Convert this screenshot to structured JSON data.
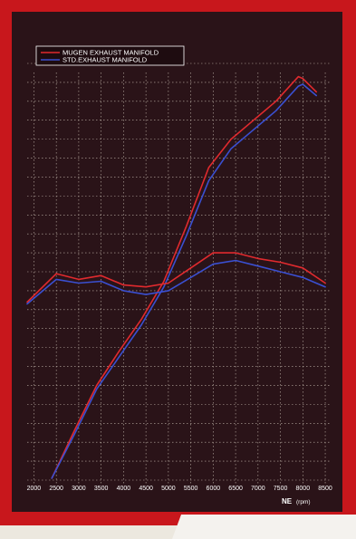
{
  "colors": {
    "frame": "#c8171c",
    "panel": "#2a1318",
    "grid": "#bfb3a8",
    "series_red": "#e02a2e",
    "series_blue": "#3a4fd0",
    "legend_box": "#ffffff"
  },
  "chart_data": {
    "type": "line",
    "title": "",
    "xlabel": "NE",
    "xlabel_unit": "(rpm)",
    "ylabel": "",
    "xlim": [
      1850,
      8600
    ],
    "ylim": [
      0,
      22
    ],
    "x_ticks": [
      "2000",
      "2500",
      "3000",
      "3500",
      "4000",
      "4500",
      "5000",
      "5500",
      "6000",
      "6500",
      "7000",
      "7500",
      "8000",
      "8500"
    ],
    "grid": true,
    "legend_position": "top-left",
    "series": [
      {
        "name": "MUGEN EXHAUST MANIFOLD",
        "role": "power",
        "color": "#e02a2e",
        "x": [
          2400,
          2900,
          3400,
          3900,
          4400,
          4900,
          5400,
          5900,
          6400,
          6900,
          7400,
          7900,
          8000,
          8300
        ],
        "y": [
          0.1,
          2.6,
          5.0,
          6.8,
          8.5,
          10.5,
          13.4,
          16.5,
          18.0,
          19.0,
          20.0,
          21.3,
          21.2,
          20.5
        ]
      },
      {
        "name": "STD.EXHAUST MANIFOLD",
        "role": "power",
        "color": "#3a4fd0",
        "x": [
          2400,
          2900,
          3400,
          3900,
          4400,
          4900,
          5400,
          5900,
          6400,
          6900,
          7400,
          7900,
          8000,
          8300
        ],
        "y": [
          0.1,
          2.4,
          4.8,
          6.5,
          8.2,
          10.2,
          12.9,
          15.8,
          17.5,
          18.5,
          19.5,
          20.8,
          20.9,
          20.3
        ]
      },
      {
        "name": "MUGEN EXHAUST MANIFOLD",
        "role": "torque",
        "color": "#e02a2e",
        "x": [
          1850,
          2500,
          3000,
          3500,
          4000,
          4500,
          5000,
          5500,
          6000,
          6500,
          7000,
          7500,
          8000,
          8500
        ],
        "y": [
          9.4,
          10.9,
          10.6,
          10.8,
          10.3,
          10.2,
          10.4,
          11.2,
          12.0,
          12.0,
          11.7,
          11.5,
          11.2,
          10.4
        ]
      },
      {
        "name": "STD.EXHAUST MANIFOLD",
        "role": "torque",
        "color": "#3a4fd0",
        "x": [
          1850,
          2500,
          3000,
          3500,
          4000,
          4500,
          5000,
          5500,
          6000,
          6500,
          7000,
          7500,
          8000,
          8500
        ],
        "y": [
          9.3,
          10.6,
          10.4,
          10.5,
          10.0,
          9.8,
          10.0,
          10.7,
          11.4,
          11.6,
          11.3,
          11.0,
          10.7,
          10.2
        ]
      }
    ]
  }
}
